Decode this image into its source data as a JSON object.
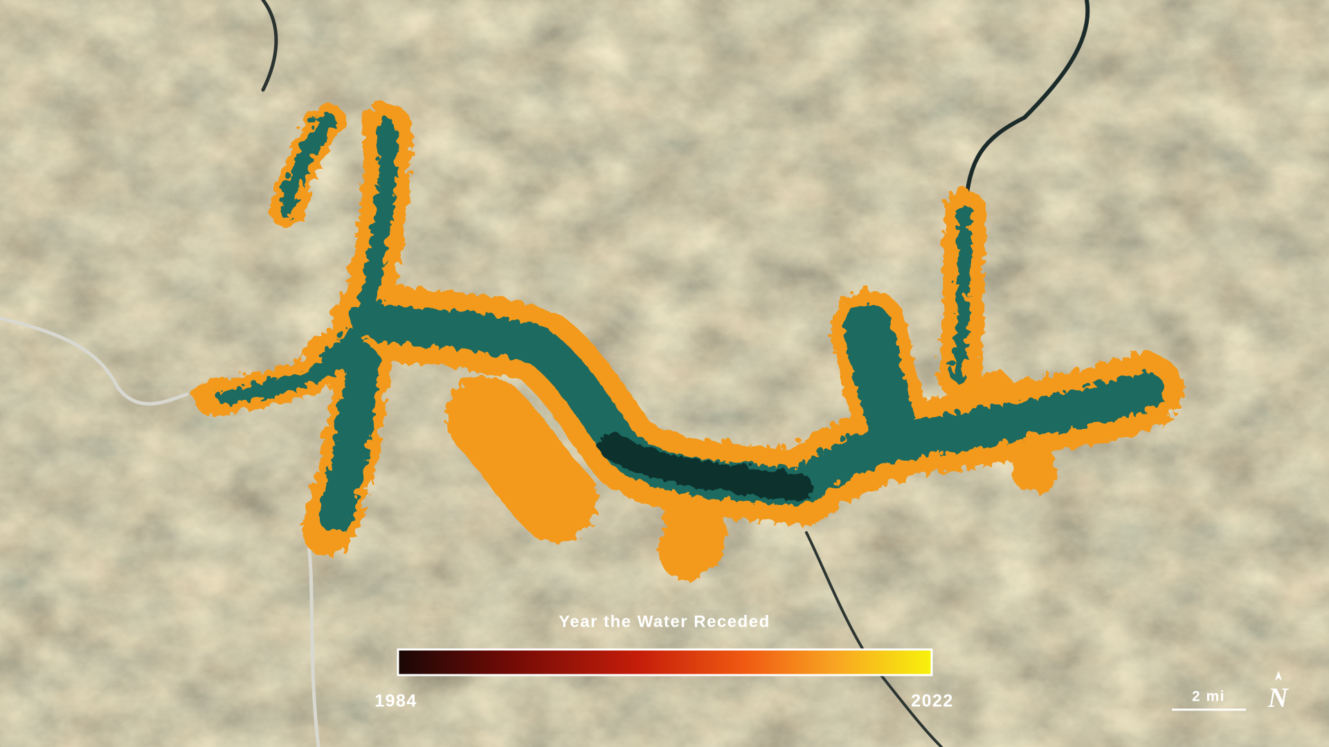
{
  "map": {
    "legend": {
      "title": "Year the Water Receded",
      "min": 1984,
      "max": 2022
    },
    "scale_bar": "2 mi",
    "north": "N"
  }
}
